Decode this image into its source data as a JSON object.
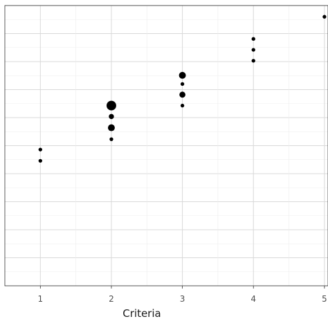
{
  "chart_data": {
    "type": "scatter",
    "title": "",
    "xlabel": "Criteria",
    "ylabel": "",
    "xlim": [
      0.5,
      5.05
    ],
    "ylim": [
      0,
      10
    ],
    "grid": true,
    "x_ticks": [
      {
        "value": 1,
        "label": "1"
      },
      {
        "value": 2,
        "label": "2"
      },
      {
        "value": 3,
        "label": "3"
      },
      {
        "value": 4,
        "label": "4"
      },
      {
        "value": 5,
        "label": "5"
      }
    ],
    "series": [
      {
        "points": [
          {
            "x": 1,
            "y": 4.86,
            "size": 1
          },
          {
            "x": 1,
            "y": 4.46,
            "size": 1
          },
          {
            "x": 2,
            "y": 6.43,
            "size": 5
          },
          {
            "x": 2,
            "y": 6.04,
            "size": 2
          },
          {
            "x": 2,
            "y": 5.64,
            "size": 3
          },
          {
            "x": 2,
            "y": 5.23,
            "size": 1
          },
          {
            "x": 3,
            "y": 7.51,
            "size": 3
          },
          {
            "x": 3,
            "y": 7.2,
            "size": 1
          },
          {
            "x": 3,
            "y": 6.82,
            "size": 2.5
          },
          {
            "x": 3,
            "y": 6.43,
            "size": 1
          },
          {
            "x": 4,
            "y": 8.81,
            "size": 1
          },
          {
            "x": 4,
            "y": 8.42,
            "size": 1
          },
          {
            "x": 4,
            "y": 8.03,
            "size": 1
          },
          {
            "x": 5,
            "y": 9.6,
            "size": 1
          }
        ]
      }
    ]
  }
}
